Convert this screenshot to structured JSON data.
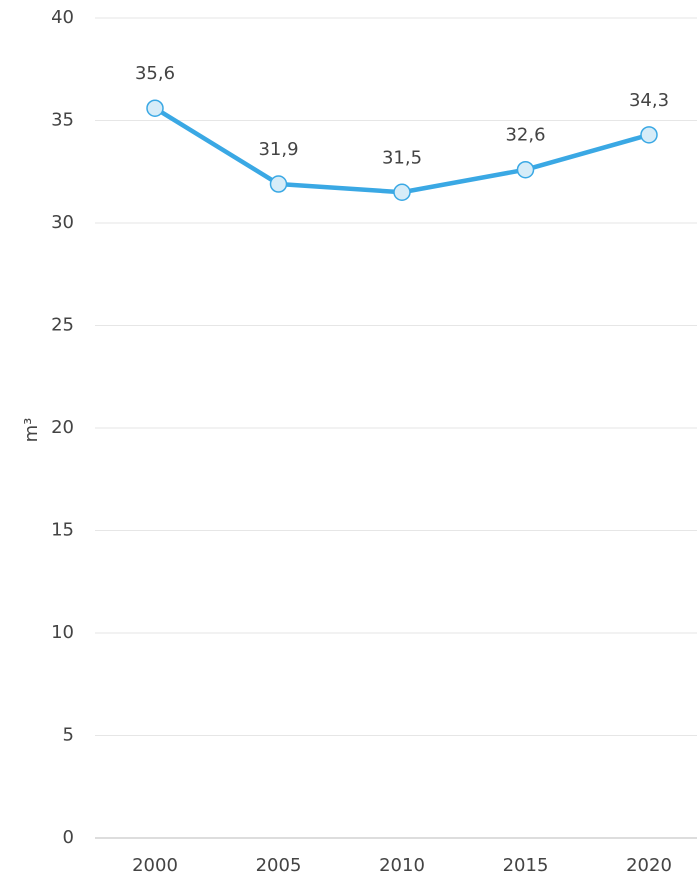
{
  "chart_data": {
    "type": "line",
    "y_label": "m³",
    "categories": [
      "2000",
      "2005",
      "2010",
      "2015",
      "2020"
    ],
    "series": [
      {
        "name": null,
        "color": "#3aa8e4",
        "values": [
          35.6,
          31.9,
          31.5,
          32.6,
          34.3
        ],
        "value_labels": [
          "35,6",
          "31,9",
          "31,5",
          "32,6",
          "34,3"
        ]
      }
    ],
    "ylim": [
      0,
      40
    ],
    "yticks": [
      0,
      5,
      10,
      15,
      20,
      25,
      30,
      35,
      40
    ],
    "grid": true
  }
}
